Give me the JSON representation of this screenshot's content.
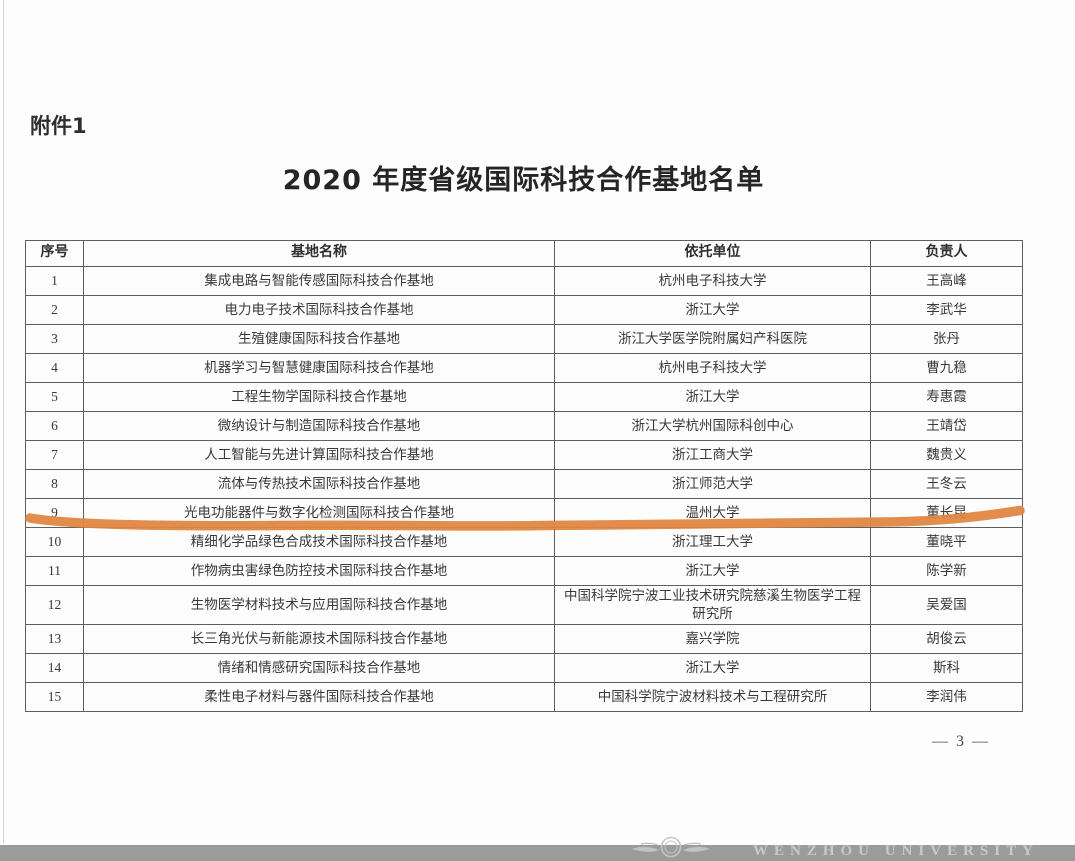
{
  "page": {
    "attachment_label": "附件1",
    "title": "2020 年度省级国际科技合作基地名单",
    "page_number": "— 3 —"
  },
  "table": {
    "headers": [
      "序号",
      "基地名称",
      "依托单位",
      "负责人"
    ],
    "rows": [
      {
        "no": "1",
        "base": "集成电路与智能传感国际科技合作基地",
        "org": "杭州电子科技大学",
        "leader": "王高峰",
        "highlighted": false
      },
      {
        "no": "2",
        "base": "电力电子技术国际科技合作基地",
        "org": "浙江大学",
        "leader": "李武华",
        "highlighted": false
      },
      {
        "no": "3",
        "base": "生殖健康国际科技合作基地",
        "org": "浙江大学医学院附属妇产科医院",
        "leader": "张丹",
        "highlighted": false
      },
      {
        "no": "4",
        "base": "机器学习与智慧健康国际科技合作基地",
        "org": "杭州电子科技大学",
        "leader": "曹九稳",
        "highlighted": false
      },
      {
        "no": "5",
        "base": "工程生物学国际科技合作基地",
        "org": "浙江大学",
        "leader": "寿惠霞",
        "highlighted": false
      },
      {
        "no": "6",
        "base": "微纳设计与制造国际科技合作基地",
        "org": "浙江大学杭州国际科创中心",
        "leader": "王靖岱",
        "highlighted": false
      },
      {
        "no": "7",
        "base": "人工智能与先进计算国际科技合作基地",
        "org": "浙江工商大学",
        "leader": "魏贵义",
        "highlighted": false
      },
      {
        "no": "8",
        "base": "流体与传热技术国际科技合作基地",
        "org": "浙江师范大学",
        "leader": "王冬云",
        "highlighted": false
      },
      {
        "no": "9",
        "base": "光电功能器件与数字化检测国际科技合作基地",
        "org": "温州大学",
        "leader": "董长昆",
        "highlighted": true
      },
      {
        "no": "10",
        "base": "精细化学品绿色合成技术国际科技合作基地",
        "org": "浙江理工大学",
        "leader": "董晓平",
        "highlighted": false
      },
      {
        "no": "11",
        "base": "作物病虫害绿色防控技术国际科技合作基地",
        "org": "浙江大学",
        "leader": "陈学新",
        "highlighted": false
      },
      {
        "no": "12",
        "base": "生物医学材料技术与应用国际科技合作基地",
        "org": "中国科学院宁波工业技术研究院慈溪生物医学工程研究所",
        "leader": "吴爱国",
        "highlighted": false
      },
      {
        "no": "13",
        "base": "长三角光伏与新能源技术国际科技合作基地",
        "org": "嘉兴学院",
        "leader": "胡俊云",
        "highlighted": false
      },
      {
        "no": "14",
        "base": "情绪和情感研究国际科技合作基地",
        "org": "浙江大学",
        "leader": "斯科",
        "highlighted": false
      },
      {
        "no": "15",
        "base": "柔性电子材料与器件国际科技合作基地",
        "org": "中国科学院宁波材料技术与工程研究所",
        "leader": "李润伟",
        "highlighted": false
      }
    ]
  },
  "highlight": {
    "color": "#e0843e"
  },
  "footer": {
    "watermark_text": "WENZHOU UNIVERSITY",
    "logo": "wenzhou-university-emblem"
  }
}
